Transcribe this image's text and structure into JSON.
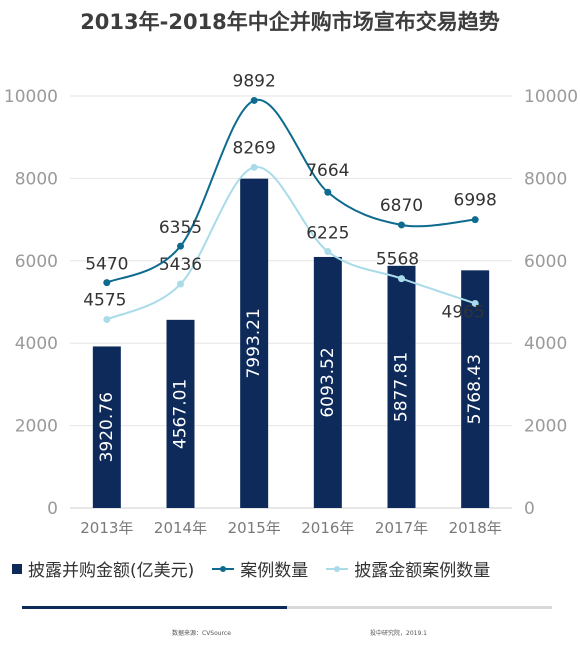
{
  "title": "2013年-2018年中企并购市场宣布交易趋势",
  "footer": {
    "source": "数据来源：CVSource",
    "credit": "投中研究院，2019.1"
  },
  "colors": {
    "bar": "#0d2a5a",
    "count_line": "#0e6b8f",
    "disclosed_line": "#a9dbe9",
    "axis_text": "#9a9a9a",
    "grid": "#e6e6e6"
  },
  "chart_data": {
    "type": "bar",
    "title": "2013年-2018年中企并购市场宣布交易趋势",
    "categories": [
      "2013年",
      "2014年",
      "2015年",
      "2016年",
      "2017年",
      "2018年"
    ],
    "ylim": [
      0,
      10000
    ],
    "y2lim": [
      0,
      10000
    ],
    "yticks": [
      "0",
      "2000",
      "4000",
      "6000",
      "8000",
      "10000"
    ],
    "legend_position": "bottom",
    "series": [
      {
        "name": "披露并购金额(亿美元)",
        "type": "bar",
        "values": [
          3920.76,
          4567.01,
          7993.21,
          6093.52,
          5877.81,
          5768.43
        ],
        "labels": [
          "3920.76",
          "4567.01",
          "7993.21",
          "6093.52",
          "5877.81",
          "5768.43"
        ]
      },
      {
        "name": "案例数量",
        "type": "line",
        "values": [
          5470,
          6355,
          9892,
          7664,
          6870,
          6998
        ],
        "labels": [
          "5470",
          "6355",
          "9892",
          "7664",
          "6870",
          "6998"
        ]
      },
      {
        "name": "披露金额案例数量",
        "type": "line",
        "values": [
          4575,
          5436,
          8269,
          6225,
          5568,
          4965
        ],
        "labels": [
          "4575",
          "5436",
          "8269",
          "6225",
          "5568",
          "4965"
        ]
      }
    ]
  }
}
